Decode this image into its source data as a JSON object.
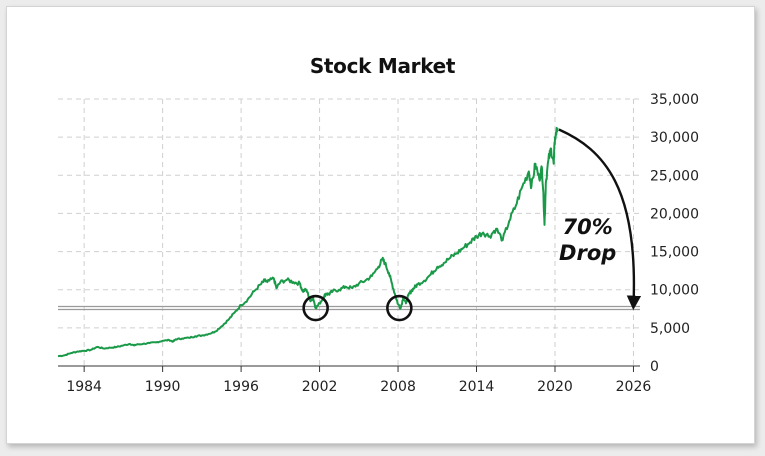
{
  "chart_data": {
    "type": "line",
    "title": "Stock Market",
    "xlabel": "",
    "ylabel": "",
    "xlim": [
      1982,
      2026.5
    ],
    "ylim": [
      0,
      35000
    ],
    "x_ticks": [
      1984,
      1990,
      1996,
      2002,
      2008,
      2014,
      2020,
      2026
    ],
    "y_ticks": [
      0,
      5000,
      10000,
      15000,
      20000,
      25000,
      30000,
      35000
    ],
    "y_tick_labels": [
      "0",
      "5,000",
      "10,000",
      "15,000",
      "20,000",
      "25,000",
      "30,000",
      "35,000"
    ],
    "grid": true,
    "y_axis_side": "right",
    "series": [
      {
        "color": "#1a9a48",
        "x": [
          1982.0,
          1982.5,
          1983.0,
          1983.5,
          1984.0,
          1984.5,
          1985.0,
          1985.5,
          1986.0,
          1986.5,
          1987.0,
          1987.5,
          1987.8,
          1988.0,
          1988.5,
          1989.0,
          1989.5,
          1990.0,
          1990.5,
          1990.8,
          1991.0,
          1991.5,
          1992.0,
          1992.5,
          1993.0,
          1993.5,
          1994.0,
          1994.5,
          1995.0,
          1995.5,
          1996.0,
          1996.5,
          1997.0,
          1997.5,
          1997.8,
          1998.0,
          1998.5,
          1998.7,
          1999.0,
          1999.5,
          2000.0,
          2000.5,
          2000.7,
          2001.0,
          2001.3,
          2001.5,
          2001.7,
          2002.0,
          2002.3,
          2002.5,
          2002.7,
          2003.0,
          2003.5,
          2004.0,
          2004.5,
          2005.0,
          2005.5,
          2006.0,
          2006.5,
          2006.8,
          2007.0,
          2007.3,
          2007.5,
          2007.8,
          2008.0,
          2008.2,
          2008.4,
          2008.6,
          2008.8,
          2009.0,
          2009.2,
          2009.5,
          2010.0,
          2010.5,
          2011.0,
          2011.5,
          2012.0,
          2012.5,
          2013.0,
          2013.5,
          2014.0,
          2014.5,
          2015.0,
          2015.5,
          2016.0,
          2016.5,
          2017.0,
          2017.5,
          2018.0,
          2018.2,
          2018.5,
          2018.8,
          2019.0,
          2019.1,
          2019.2,
          2019.3,
          2019.5,
          2019.7,
          2019.9,
          2020.0,
          2020.2
        ],
        "y": [
          1300,
          1400,
          1700,
          1900,
          2000,
          2100,
          2500,
          2300,
          2400,
          2500,
          2700,
          2900,
          2700,
          2800,
          2900,
          3000,
          3100,
          3300,
          3400,
          3200,
          3500,
          3600,
          3700,
          3900,
          4000,
          4200,
          4500,
          5200,
          6000,
          7000,
          8000,
          8700,
          9800,
          10700,
          11200,
          11000,
          11500,
          10200,
          11000,
          11300,
          11000,
          10800,
          9800,
          10000,
          8500,
          9000,
          7600,
          8200,
          9000,
          9500,
          9400,
          9800,
          10000,
          10400,
          10200,
          10800,
          11200,
          11800,
          13000,
          14000,
          13500,
          12200,
          11000,
          9200,
          8100,
          7600,
          9000,
          8200,
          9300,
          9800,
          10200,
          10700,
          11200,
          12000,
          13000,
          13500,
          14200,
          14800,
          15500,
          16200,
          17000,
          17500,
          17000,
          18000,
          16500,
          19000,
          21000,
          23500,
          25500,
          23500,
          26500,
          24500,
          26000,
          23000,
          18500,
          24000,
          27000,
          28500,
          26500,
          30000,
          31200
        ]
      }
    ],
    "highlight_level": 7600,
    "circle_markers": [
      {
        "x": 2001.7,
        "y": 7600
      },
      {
        "x": 2008.1,
        "y": 7600
      }
    ],
    "annotations": [
      {
        "text": "70%",
        "x": 2022.5,
        "y": 17300
      },
      {
        "text": "Drop",
        "x": 2022.5,
        "y": 13900
      }
    ],
    "arrow": {
      "from": [
        2020.3,
        31000
      ],
      "to": [
        2026.0,
        7900
      ]
    }
  }
}
